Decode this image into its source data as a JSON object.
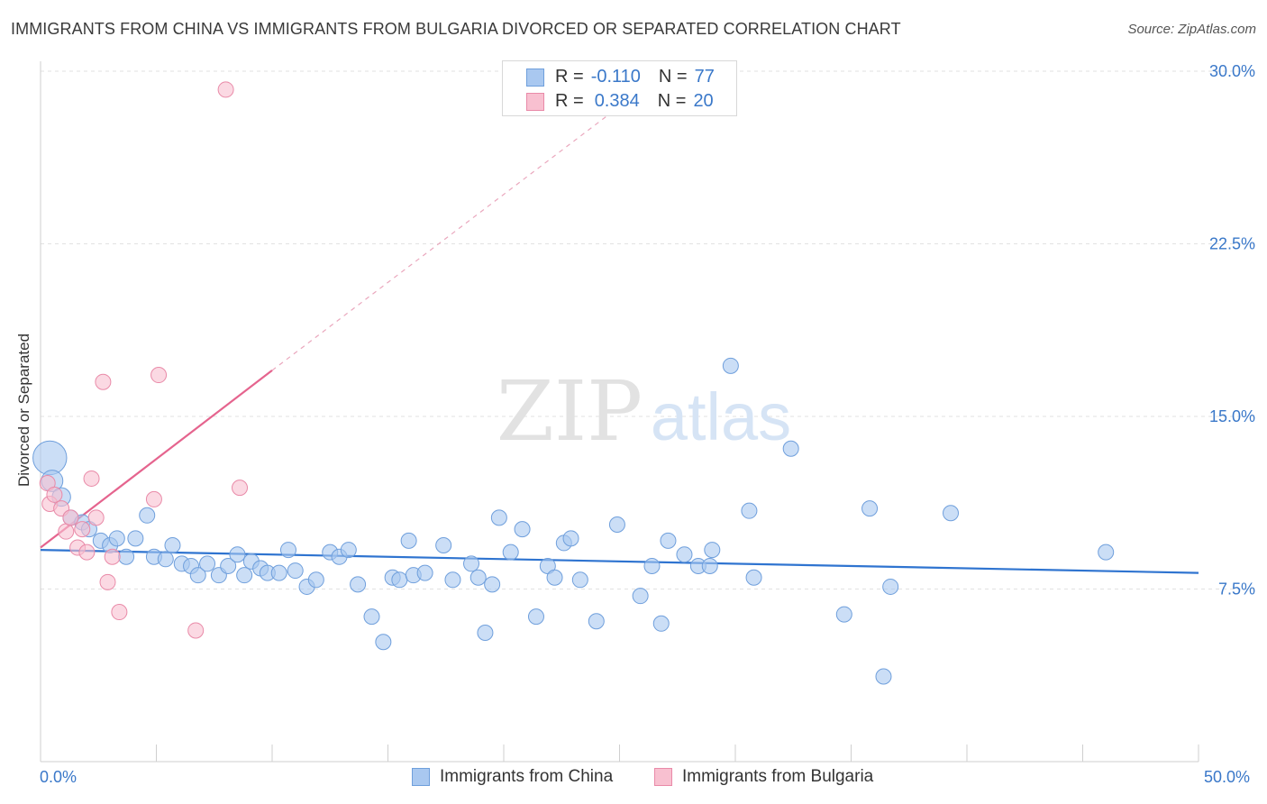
{
  "title": "IMMIGRANTS FROM CHINA VS IMMIGRANTS FROM BULGARIA DIVORCED OR SEPARATED CORRELATION CHART",
  "source": "Source: ZipAtlas.com",
  "watermark": {
    "zip": "ZIP",
    "atlas": "atlas"
  },
  "legend": {
    "china": {
      "r_label": "R =",
      "r_value": "-0.110",
      "n_label": "N =",
      "n_value": "77"
    },
    "bulgaria": {
      "r_label": "R =",
      "r_value": "0.384",
      "n_label": "N =",
      "n_value": "20"
    }
  },
  "colors": {
    "china_fill": "#a9c8f0",
    "china_stroke": "#6f9fdc",
    "china_line": "#2f74d0",
    "bulgaria_fill": "#f8c0d0",
    "bulgaria_stroke": "#e98aa8",
    "bulgaria_line": "#e5648e",
    "axis_text": "#3a78c9",
    "grid": "#e2e2e2"
  },
  "chart_data": {
    "type": "scatter",
    "title": "IMMIGRANTS FROM CHINA VS IMMIGRANTS FROM BULGARIA DIVORCED OR SEPARATED CORRELATION CHART",
    "xlabel": "",
    "ylabel": "Divorced or Separated",
    "xlim": [
      0,
      50
    ],
    "ylim": [
      0,
      30.5
    ],
    "x_tick_labels": {
      "min": "0.0%",
      "max": "50.0%"
    },
    "y_ticks": [
      7.5,
      15.0,
      22.5,
      30.0
    ],
    "y_tick_labels": [
      "7.5%",
      "15.0%",
      "22.5%",
      "30.0%"
    ],
    "legend_position": "bottom-center",
    "series": [
      {
        "name": "Immigrants from China",
        "color": "#a9c8f0",
        "R": -0.11,
        "N": 77,
        "trend": {
          "x": [
            0,
            50
          ],
          "y": [
            9.2,
            8.2
          ]
        },
        "points": [
          [
            0.4,
            13.2,
            2.2
          ],
          [
            0.5,
            12.2,
            1.4
          ],
          [
            0.9,
            11.5,
            1.2
          ],
          [
            1.3,
            10.6,
            1.0
          ],
          [
            1.8,
            10.4,
            1.0
          ],
          [
            2.1,
            10.1,
            1.0
          ],
          [
            2.6,
            9.6,
            1.0
          ],
          [
            3.0,
            9.4,
            1.0
          ],
          [
            3.3,
            9.7,
            1.0
          ],
          [
            3.7,
            8.9,
            1.0
          ],
          [
            4.1,
            9.7,
            1.0
          ],
          [
            4.6,
            10.7,
            1.0
          ],
          [
            4.9,
            8.9,
            1.0
          ],
          [
            5.4,
            8.8,
            1.0
          ],
          [
            5.7,
            9.4,
            1.0
          ],
          [
            6.1,
            8.6,
            1.0
          ],
          [
            6.5,
            8.5,
            1.0
          ],
          [
            6.8,
            8.1,
            1.0
          ],
          [
            7.2,
            8.6,
            1.0
          ],
          [
            7.7,
            8.1,
            1.0
          ],
          [
            8.1,
            8.5,
            1.0
          ],
          [
            8.5,
            9.0,
            1.0
          ],
          [
            8.8,
            8.1,
            1.0
          ],
          [
            9.1,
            8.7,
            1.0
          ],
          [
            9.5,
            8.4,
            1.0
          ],
          [
            9.8,
            8.2,
            1.0
          ],
          [
            10.3,
            8.2,
            1.0
          ],
          [
            10.7,
            9.2,
            1.0
          ],
          [
            11.0,
            8.3,
            1.0
          ],
          [
            11.5,
            7.6,
            1.0
          ],
          [
            11.9,
            7.9,
            1.0
          ],
          [
            12.5,
            9.1,
            1.0
          ],
          [
            12.9,
            8.9,
            1.0
          ],
          [
            13.3,
            9.2,
            1.0
          ],
          [
            13.7,
            7.7,
            1.0
          ],
          [
            14.3,
            6.3,
            1.0
          ],
          [
            14.8,
            5.2,
            1.0
          ],
          [
            15.2,
            8.0,
            1.0
          ],
          [
            15.5,
            7.9,
            1.0
          ],
          [
            15.9,
            9.6,
            1.0
          ],
          [
            16.1,
            8.1,
            1.0
          ],
          [
            16.6,
            8.2,
            1.0
          ],
          [
            17.4,
            9.4,
            1.0
          ],
          [
            17.8,
            7.9,
            1.0
          ],
          [
            18.6,
            8.6,
            1.0
          ],
          [
            18.9,
            8.0,
            1.0
          ],
          [
            19.2,
            5.6,
            1.0
          ],
          [
            19.5,
            7.7,
            1.0
          ],
          [
            19.8,
            10.6,
            1.0
          ],
          [
            20.3,
            9.1,
            1.0
          ],
          [
            20.8,
            10.1,
            1.0
          ],
          [
            21.4,
            6.3,
            1.0
          ],
          [
            21.9,
            8.5,
            1.0
          ],
          [
            22.2,
            8.0,
            1.0
          ],
          [
            22.6,
            9.5,
            1.0
          ],
          [
            22.9,
            9.7,
            1.0
          ],
          [
            23.3,
            7.9,
            1.0
          ],
          [
            24.0,
            6.1,
            1.0
          ],
          [
            24.9,
            10.3,
            1.0
          ],
          [
            25.9,
            7.2,
            1.0
          ],
          [
            26.4,
            8.5,
            1.0
          ],
          [
            26.8,
            6.0,
            1.0
          ],
          [
            27.1,
            9.6,
            1.0
          ],
          [
            27.8,
            9.0,
            1.0
          ],
          [
            28.4,
            8.5,
            1.0
          ],
          [
            28.9,
            8.5,
            1.0
          ],
          [
            29.0,
            9.2,
            1.0
          ],
          [
            29.8,
            17.2,
            1.0
          ],
          [
            30.6,
            10.9,
            1.0
          ],
          [
            30.8,
            8.0,
            1.0
          ],
          [
            32.4,
            13.6,
            1.0
          ],
          [
            34.7,
            6.4,
            1.0
          ],
          [
            35.8,
            11.0,
            1.0
          ],
          [
            36.4,
            3.7,
            1.0
          ],
          [
            36.7,
            7.6,
            1.0
          ],
          [
            39.3,
            10.8,
            1.0
          ],
          [
            46.0,
            9.1,
            1.0
          ]
        ]
      },
      {
        "name": "Immigrants from Bulgaria",
        "color": "#f8c0d0",
        "R": 0.384,
        "N": 20,
        "trend": {
          "x": [
            0,
            10,
            27
          ],
          "y": [
            9.3,
            17.0,
            30.0
          ],
          "solid_until_x": 10
        },
        "points": [
          [
            0.3,
            12.1,
            1.0
          ],
          [
            0.4,
            11.2,
            1.0
          ],
          [
            0.6,
            11.6,
            1.0
          ],
          [
            0.9,
            11.0,
            1.0
          ],
          [
            1.1,
            10.0,
            1.0
          ],
          [
            1.3,
            10.6,
            1.0
          ],
          [
            1.6,
            9.3,
            1.0
          ],
          [
            1.8,
            10.1,
            1.0
          ],
          [
            2.0,
            9.1,
            1.0
          ],
          [
            2.2,
            12.3,
            1.0
          ],
          [
            2.4,
            10.6,
            1.0
          ],
          [
            2.7,
            16.5,
            1.0
          ],
          [
            2.9,
            7.8,
            1.0
          ],
          [
            3.1,
            8.9,
            1.0
          ],
          [
            3.4,
            6.5,
            1.0
          ],
          [
            4.9,
            11.4,
            1.0
          ],
          [
            5.1,
            16.8,
            1.0
          ],
          [
            6.7,
            5.7,
            1.0
          ],
          [
            8.0,
            29.2,
            1.0
          ],
          [
            8.6,
            11.9,
            1.0
          ]
        ]
      }
    ]
  },
  "bottom_legend": {
    "china": "Immigrants from China",
    "bulgaria": "Immigrants from Bulgaria"
  },
  "axis": {
    "x_min": "0.0%",
    "x_max": "50.0%"
  }
}
